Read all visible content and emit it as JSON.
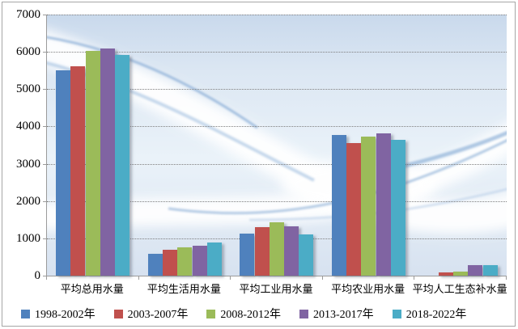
{
  "chart_data": {
    "type": "bar",
    "title": "",
    "xlabel": "",
    "ylabel": "",
    "categories": [
      "平均总用水量",
      "平均生活用水量",
      "平均工业用水量",
      "平均农业用水量",
      "平均人工生态补水量"
    ],
    "series": [
      {
        "name": "1998-2002年",
        "color": "#4F81BD",
        "values": [
          5500,
          580,
          1130,
          3780,
          0
        ]
      },
      {
        "name": "2003-2007年",
        "color": "#C0504D",
        "values": [
          5610,
          690,
          1300,
          3550,
          90
        ]
      },
      {
        "name": "2008-2012年",
        "color": "#9BBB59",
        "values": [
          6030,
          760,
          1420,
          3720,
          115
        ]
      },
      {
        "name": "2013-2017年",
        "color": "#8064A2",
        "values": [
          6090,
          800,
          1330,
          3820,
          280
        ]
      },
      {
        "name": "2018-2022年",
        "color": "#4BACC6",
        "values": [
          5920,
          890,
          1110,
          3650,
          280
        ]
      }
    ],
    "ylim": [
      0,
      7000
    ],
    "ytick_step": 1000,
    "yticks": [
      "0",
      "1000",
      "2000",
      "3000",
      "4000",
      "5000",
      "6000",
      "7000"
    ],
    "grid": "horizontal-dotted",
    "legend_position": "bottom"
  },
  "colors": {
    "axis": "#9b9b9b",
    "gridline": "#7f7f7f",
    "frame_border": "#a6a6a6",
    "text": "#000000"
  }
}
